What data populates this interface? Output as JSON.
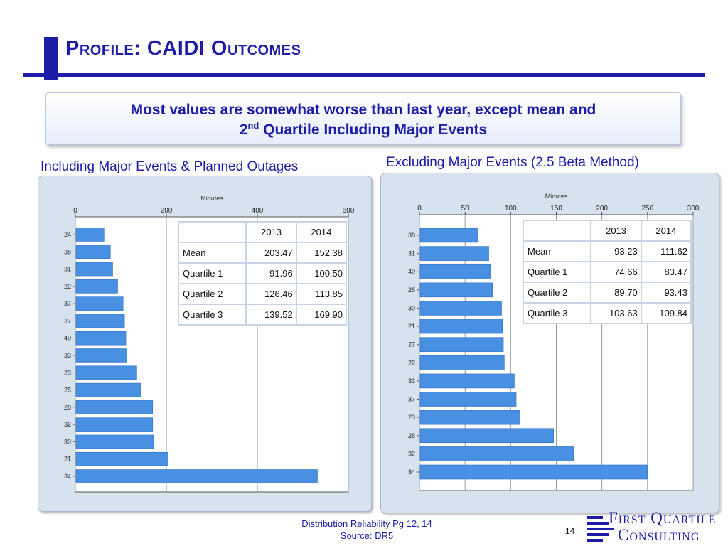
{
  "slide": {
    "title": "Profile: CAIDI Outcomes",
    "callout_line1": "Most values are somewhat worse than last year, except mean and",
    "callout_line2_pre": "2",
    "callout_line2_sup": "nd",
    "callout_line2_post": " Quartile Including Major Events",
    "footer_line1": "Distribution Reliability Pg 12, 14",
    "footer_line2": "Source: DR5",
    "page_number": "14",
    "logo_line1": "First Quartile",
    "logo_line2": "Consulting"
  },
  "left_panel": {
    "title": "Including Major Events & Planned Outages",
    "stats": {
      "headers": [
        "",
        "2013",
        "2014"
      ],
      "rows": [
        {
          "label": "Mean",
          "v2013": "203.47",
          "v2014": "152.38"
        },
        {
          "label": "Quartile 1",
          "v2013": "91.96",
          "v2014": "100.50"
        },
        {
          "label": "Quartile 2",
          "v2013": "126.46",
          "v2014": "113.85"
        },
        {
          "label": "Quartile 3",
          "v2013": "139.52",
          "v2014": "169.90"
        }
      ]
    }
  },
  "right_panel": {
    "title": "Excluding Major Events (2.5 Beta Method)",
    "stats": {
      "headers": [
        "",
        "2013",
        "2014"
      ],
      "rows": [
        {
          "label": "Mean",
          "v2013": "93.23",
          "v2014": "111.62"
        },
        {
          "label": "Quartile 1",
          "v2013": "74.66",
          "v2014": "83.47"
        },
        {
          "label": "Quartile 2",
          "v2013": "89.70",
          "v2014": "93.43"
        },
        {
          "label": "Quartile 3",
          "v2013": "103.63",
          "v2014": "109.84"
        }
      ]
    }
  },
  "colors": {
    "title_blue": "#1c1ca8",
    "bar_blue": "#4a90e2",
    "panel_bg": "#d7e2ef"
  },
  "chart_data": [
    {
      "type": "bar",
      "orientation": "horizontal",
      "title": "Minutes",
      "categories": [
        "24",
        "38",
        "31",
        "22",
        "37",
        "27",
        "40",
        "33",
        "23",
        "25",
        "28",
        "32",
        "30",
        "21",
        "34"
      ],
      "values": [
        63,
        77,
        82,
        93,
        105,
        108,
        111,
        113,
        135,
        144,
        170,
        170,
        172,
        204,
        532
      ],
      "xlim": [
        0,
        600
      ],
      "xticks": [
        0,
        200,
        400,
        600
      ],
      "grid": true
    },
    {
      "type": "bar",
      "orientation": "horizontal",
      "title": "Minutes",
      "categories": [
        "38",
        "31",
        "40",
        "25",
        "30",
        "21",
        "27",
        "22",
        "33",
        "37",
        "23",
        "28",
        "32",
        "34"
      ],
      "values": [
        64,
        76,
        78,
        80,
        90,
        91,
        92,
        93,
        104,
        106,
        110,
        147,
        169,
        250
      ],
      "xlim": [
        0,
        300
      ],
      "xticks": [
        0,
        50,
        100,
        150,
        200,
        250,
        300
      ],
      "grid": true
    }
  ]
}
